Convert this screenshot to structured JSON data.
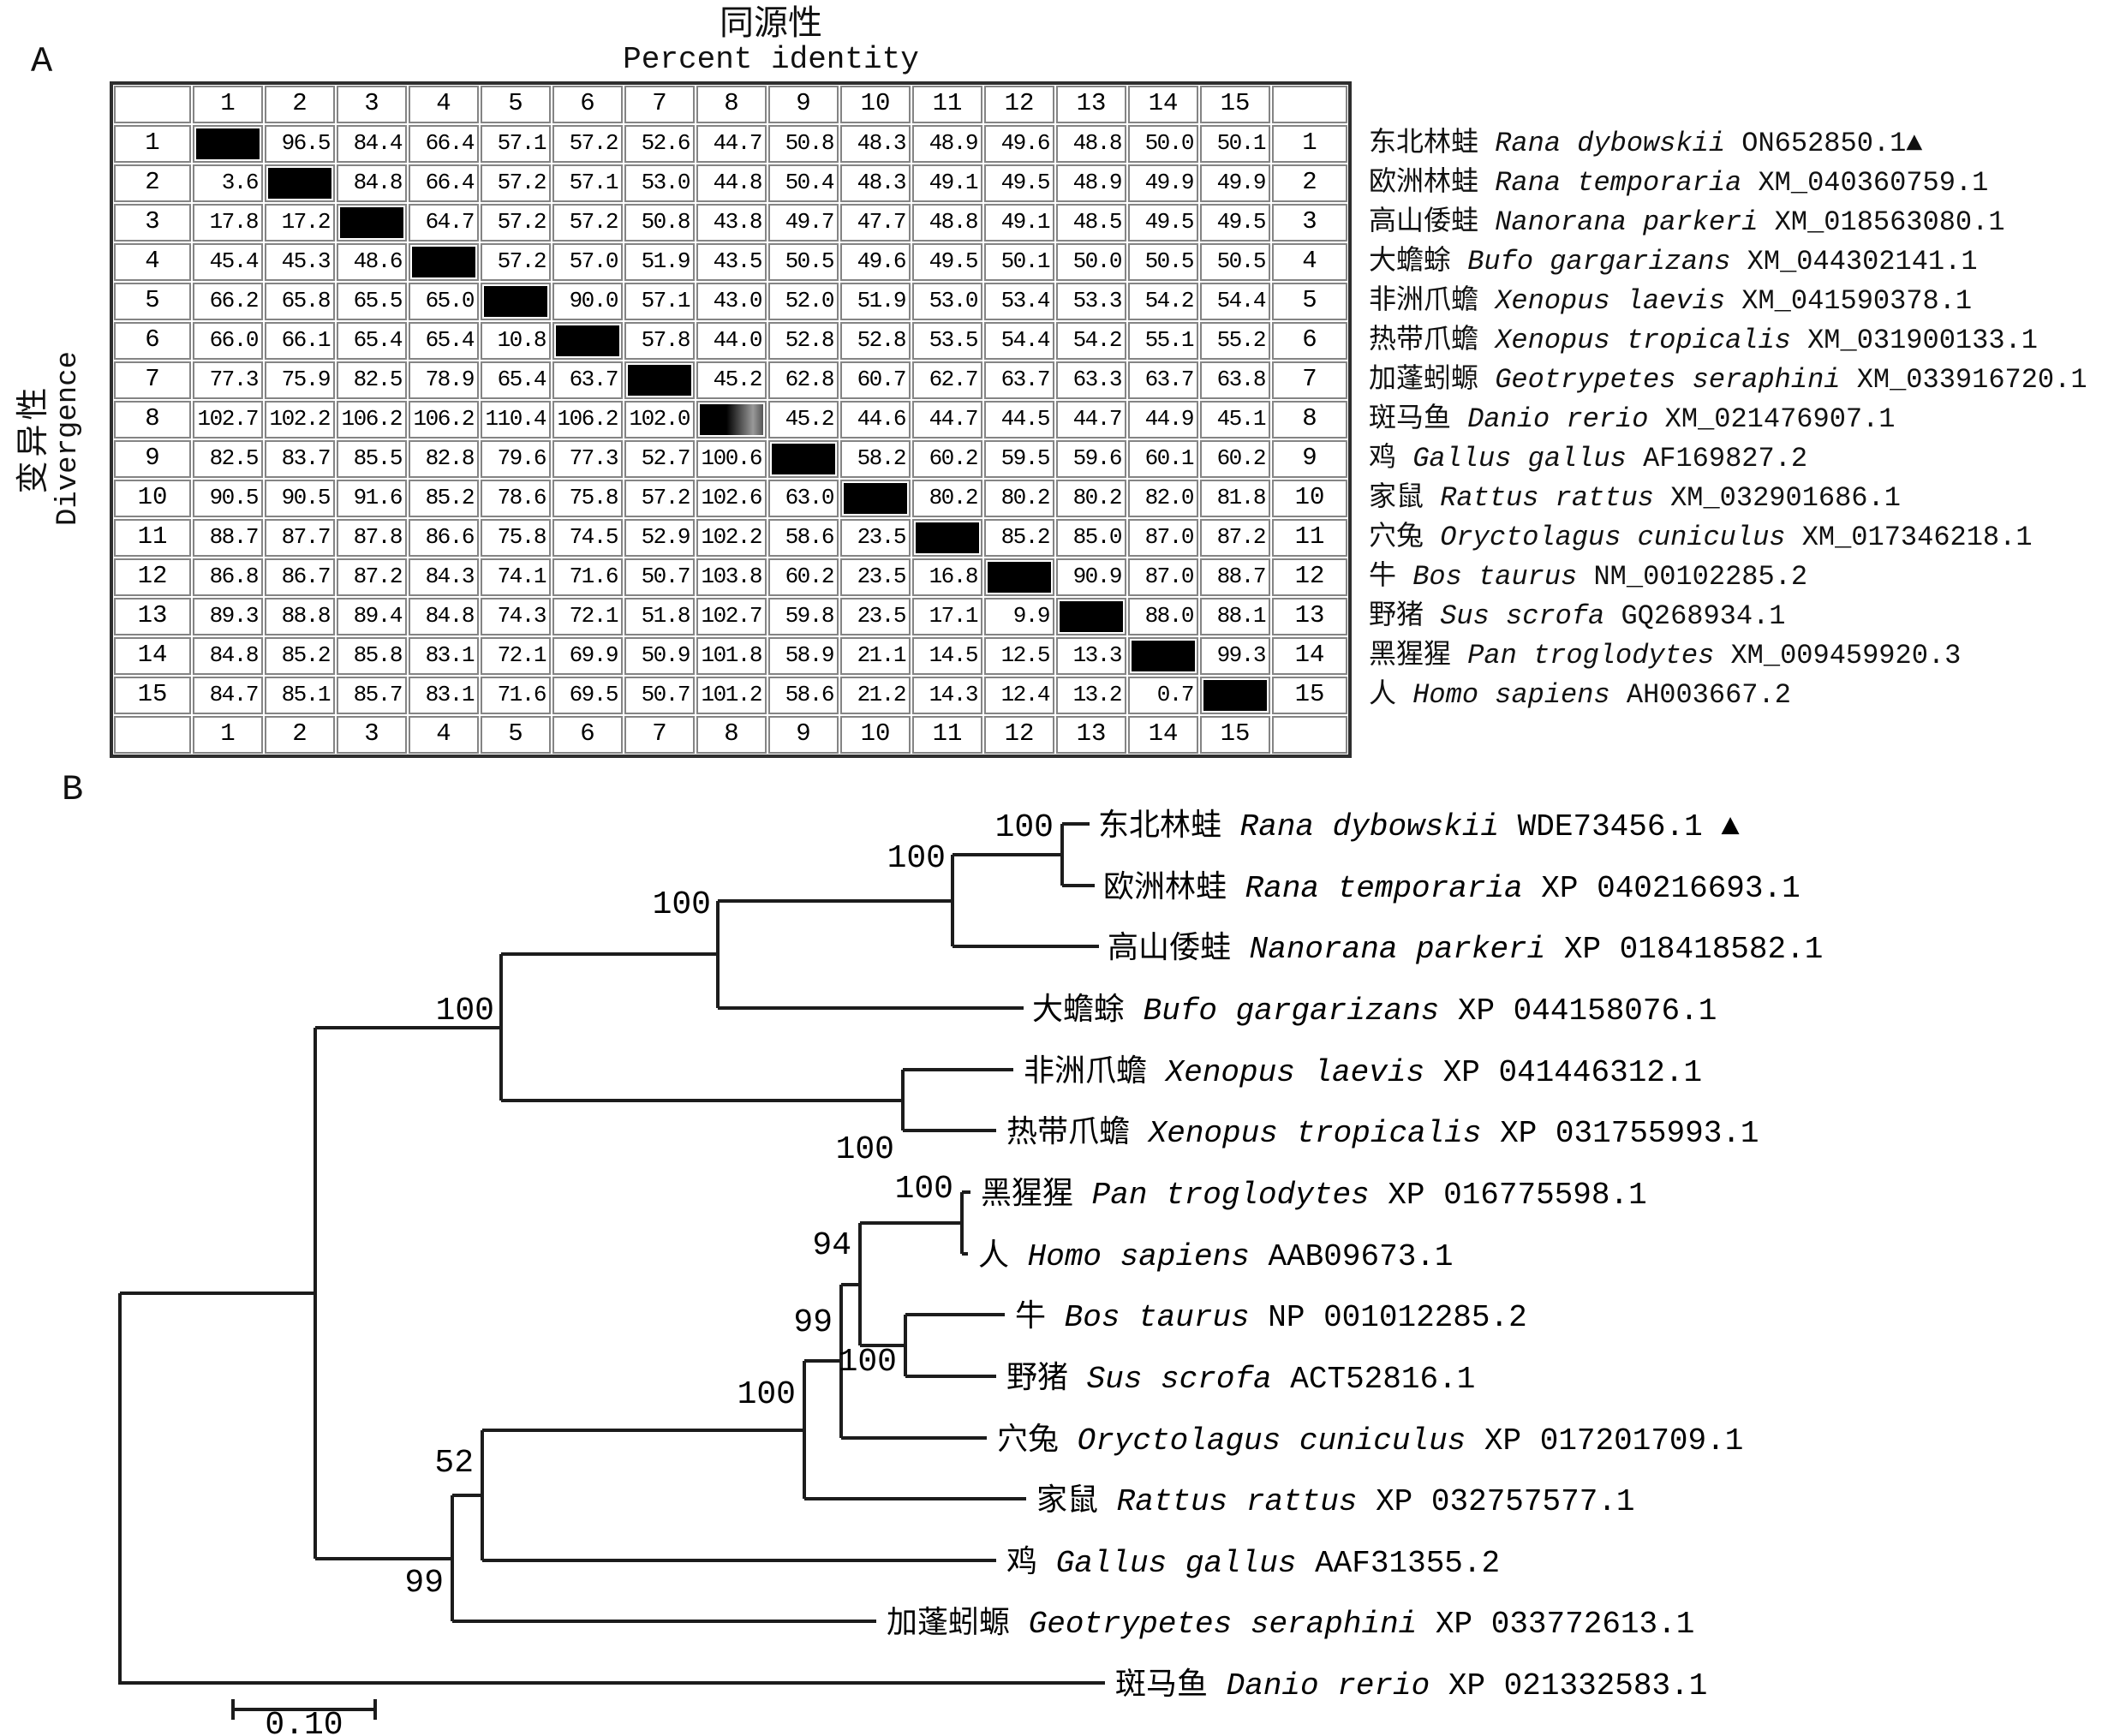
{
  "panel_a": {
    "label": "A",
    "title_cn": "同源性",
    "title_en": "Percent identity",
    "y_axis_cn": "变异性",
    "y_axis_en": "Divergence",
    "col_headers": [
      "1",
      "2",
      "3",
      "4",
      "5",
      "6",
      "7",
      "8",
      "9",
      "10",
      "11",
      "12",
      "13",
      "14",
      "15"
    ],
    "footer": [
      "1",
      "2",
      "3",
      "4",
      "5",
      "6",
      "7",
      "8",
      "9",
      "10",
      "11",
      "12",
      "13",
      "14",
      "15"
    ],
    "rows": [
      {
        "num": "1",
        "values": [
          "",
          "96.5",
          "84.4",
          "66.4",
          "57.1",
          "57.2",
          "52.6",
          "44.7",
          "50.8",
          "48.3",
          "48.9",
          "49.6",
          "48.8",
          "50.0",
          "50.1"
        ]
      },
      {
        "num": "2",
        "values": [
          "3.6",
          "",
          "84.8",
          "66.4",
          "57.2",
          "57.1",
          "53.0",
          "44.8",
          "50.4",
          "48.3",
          "49.1",
          "49.5",
          "48.9",
          "49.9",
          "49.9"
        ]
      },
      {
        "num": "3",
        "values": [
          "17.8",
          "17.2",
          "",
          "64.7",
          "57.2",
          "57.2",
          "50.8",
          "43.8",
          "49.7",
          "47.7",
          "48.8",
          "49.1",
          "48.5",
          "49.5",
          "49.5"
        ]
      },
      {
        "num": "4",
        "values": [
          "45.4",
          "45.3",
          "48.6",
          "",
          "57.2",
          "57.0",
          "51.9",
          "43.5",
          "50.5",
          "49.6",
          "49.5",
          "50.1",
          "50.0",
          "50.5",
          "50.5"
        ]
      },
      {
        "num": "5",
        "values": [
          "66.2",
          "65.8",
          "65.5",
          "65.0",
          "",
          "90.0",
          "57.1",
          "43.0",
          "52.0",
          "51.9",
          "53.0",
          "53.4",
          "53.3",
          "54.2",
          "54.4"
        ]
      },
      {
        "num": "6",
        "values": [
          "66.0",
          "66.1",
          "65.4",
          "65.4",
          "10.8",
          "",
          "57.8",
          "44.0",
          "52.8",
          "52.8",
          "53.5",
          "54.4",
          "54.2",
          "55.1",
          "55.2"
        ]
      },
      {
        "num": "7",
        "values": [
          "77.3",
          "75.9",
          "82.5",
          "78.9",
          "65.4",
          "63.7",
          "",
          "45.2",
          "62.8",
          "60.7",
          "62.7",
          "63.7",
          "63.3",
          "63.7",
          "63.8"
        ]
      },
      {
        "num": "8",
        "values": [
          "102.7",
          "102.2",
          "106.2",
          "106.2",
          "110.4",
          "106.2",
          "102.0",
          "",
          "45.2",
          "44.6",
          "44.7",
          "44.5",
          "44.7",
          "44.9",
          "45.1"
        ]
      },
      {
        "num": "9",
        "values": [
          "82.5",
          "83.7",
          "85.5",
          "82.8",
          "79.6",
          "77.3",
          "52.7",
          "100.6",
          "",
          "58.2",
          "60.2",
          "59.5",
          "59.6",
          "60.1",
          "60.2"
        ]
      },
      {
        "num": "10",
        "values": [
          "90.5",
          "90.5",
          "91.6",
          "85.2",
          "78.6",
          "75.8",
          "57.2",
          "102.6",
          "63.0",
          "",
          "80.2",
          "80.2",
          "80.2",
          "82.0",
          "81.8"
        ]
      },
      {
        "num": "11",
        "values": [
          "88.7",
          "87.7",
          "87.8",
          "86.6",
          "75.8",
          "74.5",
          "52.9",
          "102.2",
          "58.6",
          "23.5",
          "",
          "85.2",
          "85.0",
          "87.0",
          "87.2"
        ]
      },
      {
        "num": "12",
        "values": [
          "86.8",
          "86.7",
          "87.2",
          "84.3",
          "74.1",
          "71.6",
          "50.7",
          "103.8",
          "60.2",
          "23.5",
          "16.8",
          "",
          "90.9",
          "87.0",
          "88.7"
        ]
      },
      {
        "num": "13",
        "values": [
          "89.3",
          "88.8",
          "89.4",
          "84.8",
          "74.3",
          "72.1",
          "51.8",
          "102.7",
          "59.8",
          "23.5",
          "17.1",
          "9.9",
          "",
          "88.0",
          "88.1"
        ]
      },
      {
        "num": "14",
        "values": [
          "84.8",
          "85.2",
          "85.8",
          "83.1",
          "72.1",
          "69.9",
          "50.9",
          "101.8",
          "58.9",
          "21.1",
          "14.5",
          "12.5",
          "13.3",
          "",
          "99.3"
        ]
      },
      {
        "num": "15",
        "values": [
          "84.7",
          "85.1",
          "85.7",
          "83.1",
          "71.6",
          "69.5",
          "50.7",
          "101.2",
          "58.6",
          "21.2",
          "14.3",
          "12.4",
          "13.2",
          "0.7",
          ""
        ]
      }
    ],
    "species": [
      {
        "cn": "东北林蛙",
        "latin": "Rana dybowskii",
        "acc": "ON652850.1",
        "marker": "▲"
      },
      {
        "cn": "欧洲林蛙",
        "latin": "Rana temporaria",
        "acc": "XM_040360759.1",
        "marker": ""
      },
      {
        "cn": "高山倭蛙",
        "latin": "Nanorana parkeri",
        "acc": "XM_018563080.1",
        "marker": ""
      },
      {
        "cn": "大蟾蜍",
        "latin": "Bufo gargarizans",
        "acc": "XM_044302141.1",
        "marker": ""
      },
      {
        "cn": "非洲爪蟾",
        "latin": "Xenopus laevis",
        "acc": "XM_041590378.1",
        "marker": ""
      },
      {
        "cn": "热带爪蟾",
        "latin": "Xenopus tropicalis",
        "acc": "XM_031900133.1",
        "marker": ""
      },
      {
        "cn": "加蓬蚓螈",
        "latin": "Geotrypetes seraphini",
        "acc": "XM_033916720.1",
        "marker": ""
      },
      {
        "cn": "斑马鱼",
        "latin": "Danio rerio",
        "acc": "XM_021476907.1",
        "marker": ""
      },
      {
        "cn": "鸡",
        "latin": "Gallus gallus",
        "acc": "AF169827.2",
        "marker": ""
      },
      {
        "cn": "家鼠",
        "latin": "Rattus rattus",
        "acc": "XM_032901686.1",
        "marker": ""
      },
      {
        "cn": "穴兔",
        "latin": "Oryctolagus cuniculus",
        "acc": "XM_017346218.1",
        "marker": ""
      },
      {
        "cn": "牛",
        "latin": "Bos taurus",
        "acc": "NM_00102285.2",
        "marker": ""
      },
      {
        "cn": "野猪",
        "latin": "Sus scrofa",
        "acc": "GQ268934.1",
        "marker": ""
      },
      {
        "cn": "黑猩猩",
        "latin": "Pan troglodytes",
        "acc": "XM_009459920.3",
        "marker": ""
      },
      {
        "cn": "人",
        "latin": "Homo sapiens",
        "acc": "AH003667.2",
        "marker": ""
      }
    ]
  },
  "panel_b": {
    "label": "B",
    "scale_label": "0.10",
    "leaves": [
      {
        "cn": "东北林蛙",
        "latin": "Rana dybowskii",
        "acc": "WDE73456.1",
        "marker": " ▲"
      },
      {
        "cn": "欧洲林蛙",
        "latin": "Rana temporaria",
        "acc": "XP 040216693.1",
        "marker": ""
      },
      {
        "cn": "高山倭蛙",
        "latin": "Nanorana parkeri",
        "acc": "XP 018418582.1",
        "marker": ""
      },
      {
        "cn": "大蟾蜍",
        "latin": "Bufo gargarizans",
        "acc": "XP 044158076.1",
        "marker": ""
      },
      {
        "cn": "非洲爪蟾",
        "latin": "Xenopus laevis",
        "acc": "XP 041446312.1",
        "marker": ""
      },
      {
        "cn": "热带爪蟾",
        "latin": "Xenopus tropicalis",
        "acc": "XP 031755993.1",
        "marker": ""
      },
      {
        "cn": "黑猩猩",
        "latin": "Pan troglodytes",
        "acc": "XP 016775598.1",
        "marker": ""
      },
      {
        "cn": "人",
        "latin": "Homo sapiens",
        "acc": "AAB09673.1",
        "marker": ""
      },
      {
        "cn": "牛",
        "latin": "Bos taurus",
        "acc": "NP 001012285.2",
        "marker": ""
      },
      {
        "cn": "野猪",
        "latin": "Sus scrofa",
        "acc": "ACT52816.1",
        "marker": ""
      },
      {
        "cn": "穴兔",
        "latin": "Oryctolagus cuniculus",
        "acc": "XP 017201709.1",
        "marker": ""
      },
      {
        "cn": "家鼠",
        "latin": "Rattus rattus",
        "acc": "XP 032757577.1",
        "marker": ""
      },
      {
        "cn": "鸡",
        "latin": "Gallus gallus",
        "acc": "AAF31355.2",
        "marker": ""
      },
      {
        "cn": "加蓬蚓螈",
        "latin": "Geotrypetes seraphini",
        "acc": "XP 033772613.1",
        "marker": ""
      },
      {
        "cn": "斑马鱼",
        "latin": "Danio rerio",
        "acc": "XP 021332583.1",
        "marker": ""
      }
    ],
    "bootstraps": [
      "100",
      "100",
      "100",
      "100",
      "100",
      "100",
      "94",
      "99",
      "100",
      "100",
      "52",
      "99"
    ]
  }
}
